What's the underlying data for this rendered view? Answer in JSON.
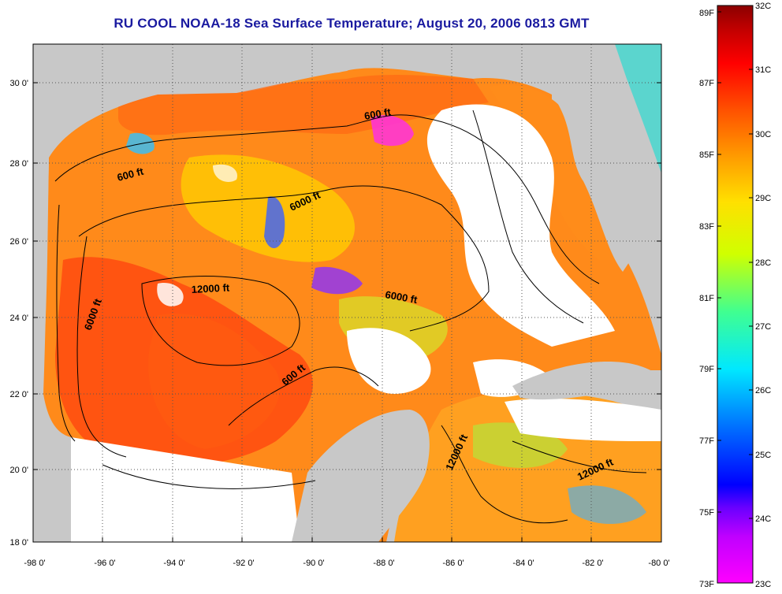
{
  "title": "RU COOL  NOAA-18  Sea Surface Temperature;  August 20, 2006 0813 GMT",
  "axes": {
    "lon_ticks": [
      "-98 0'",
      "-96 0'",
      "-94 0'",
      "-92 0'",
      "-90 0'",
      "-88 0'",
      "-86 0'",
      "-84 0'",
      "-82 0'",
      "-80 0'"
    ],
    "lat_ticks": [
      "30 0'",
      "28 0'",
      "26 0'",
      "24 0'",
      "22 0'",
      "20 0'",
      "18 0'"
    ],
    "lon_range": [
      -98,
      -80
    ],
    "lat_range": [
      18,
      31
    ],
    "grid": true
  },
  "colorbar": {
    "fahrenheit_labels": [
      "89F",
      "87F",
      "85F",
      "83F",
      "81F",
      "79F",
      "77F",
      "75F",
      "73F"
    ],
    "celsius_labels": [
      "32C",
      "31C",
      "30C",
      "29C",
      "28C",
      "27C",
      "26C",
      "25C",
      "24C",
      "23C"
    ],
    "celsius_range": [
      23,
      32
    ],
    "colors": [
      "#ff00ff",
      "#9a00ff",
      "#0000ff",
      "#0080ff",
      "#00e6ff",
      "#3cff9a",
      "#c8ff00",
      "#ffff00",
      "#ffb000",
      "#ff6a00",
      "#ff1a00",
      "#d40000",
      "#8b0000"
    ]
  },
  "contour_labels": [
    {
      "id": "600-top",
      "text": "600 ft"
    },
    {
      "id": "600-west",
      "text": "600 ft"
    },
    {
      "id": "6000-north",
      "text": "6000 ft"
    },
    {
      "id": "12000-central",
      "text": "12000 ft"
    },
    {
      "id": "6000-west",
      "text": "6000 ft"
    },
    {
      "id": "6000-east",
      "text": "6000 ft"
    },
    {
      "id": "600-yucatan",
      "text": "600 ft"
    },
    {
      "id": "12000-cayman-w",
      "text": "12000 ft"
    },
    {
      "id": "12000-cayman-e",
      "text": "12000 ft"
    }
  ],
  "legend_colors": {
    "land": "#c8c8c8",
    "no_data": "#ffffff",
    "contour": "#000000",
    "title": "#1a1aa0"
  }
}
